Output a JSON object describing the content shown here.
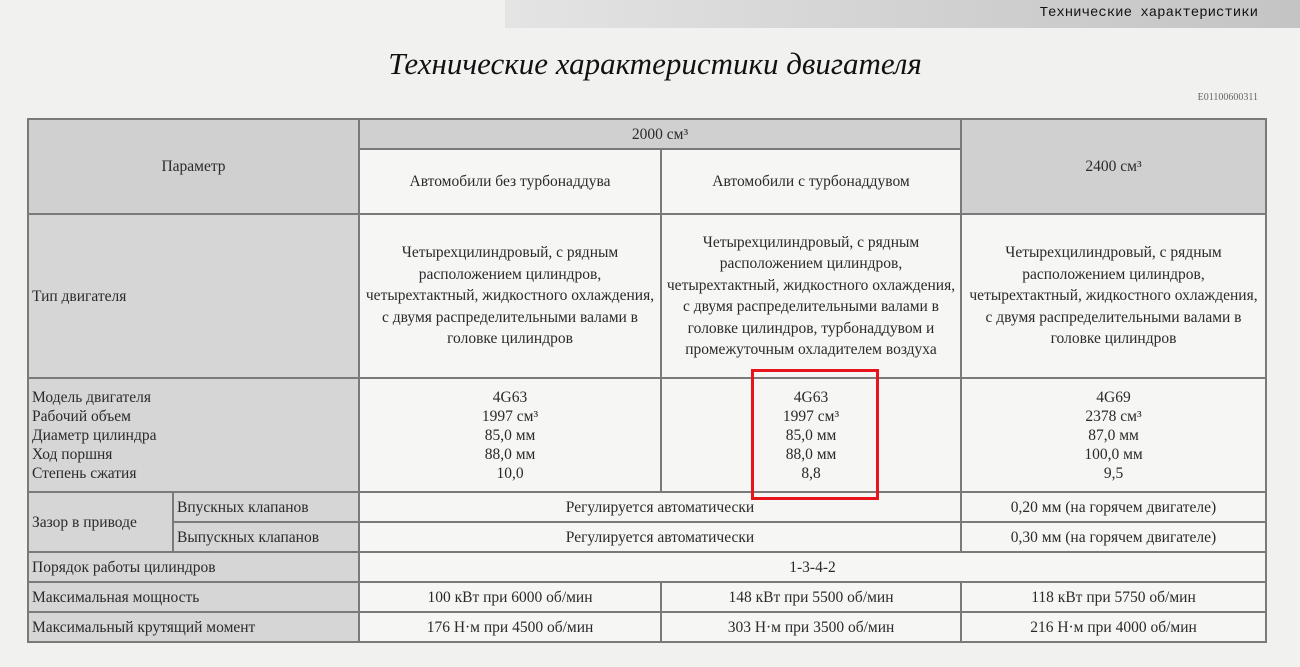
{
  "page": {
    "section_header": "Технические характеристики",
    "title": "Технические характеристики двигателя",
    "doc_code": "E01100600311",
    "highlight_color": "#e8141c"
  },
  "table": {
    "header": {
      "param": "Параметр",
      "group_2000": "2000 см³",
      "col_2400": "2400 см³",
      "sub_no_turbo": "Автомобили без турбонаддува",
      "sub_turbo": "Автомобили с турбонаддувом"
    },
    "engine_type": {
      "label": "Тип двигателя",
      "no_turbo": "Четырехцилиндровый, с рядным расположением цилиндров, четырехтактный, жидкостного охлаждения, с двумя распределительными валами в головке цилиндров",
      "turbo": "Четырехцилиндровый, с рядным расположением цилиндров, четырехтактный, жидкостного охлаждения, с двумя распределительными валами в головке цилиндров, турбонаддувом и промежуточным охладителем воздуха",
      "v2400": "Четырехцилиндровый, с рядным расположением цилиндров, четырехтактный, жидкостного охлаждения, с двумя распределительными валами в головке цилиндров"
    },
    "specs": {
      "labels": [
        "Модель двигателя",
        "Рабочий объем",
        "Диаметр цилиндра",
        "Ход поршня",
        "Степень сжатия"
      ],
      "no_turbo": [
        "4G63",
        "1997 см³",
        "85,0 мм",
        "88,0 мм",
        "10,0"
      ],
      "turbo": [
        "4G63",
        "1997 см³",
        "85,0 мм",
        "88,0 мм",
        "8,8"
      ],
      "v2400": [
        "4G69",
        "2378 см³",
        "87,0 мм",
        "100,0 мм",
        "9,5"
      ]
    },
    "valve_clearance": {
      "label": "Зазор в приводе",
      "intake_label": "Впускных клапанов",
      "exhaust_label": "Выпускных клапанов",
      "intake_2000": "Регулируется автоматически",
      "exhaust_2000": "Регулируется автоматически",
      "intake_2400": "0,20 мм (на горячем двигателе)",
      "exhaust_2400": "0,30 мм (на горячем двигателе)"
    },
    "firing_order": {
      "label": "Порядок работы цилиндров",
      "value": "1-3-4-2"
    },
    "max_power": {
      "label": "Максимальная мощность",
      "no_turbo": "100 кВт при 6000 об/мин",
      "turbo": "148 кВт при 5500 об/мин",
      "v2400": "118 кВт при 5750 об/мин"
    },
    "max_torque": {
      "label": "Максимальный крутящий момент",
      "no_turbo": "176 Н·м при 4500 об/мин",
      "turbo": "303 Н·м при 3500 об/мин",
      "v2400": "216 Н·м при 4000 об/мин"
    }
  }
}
